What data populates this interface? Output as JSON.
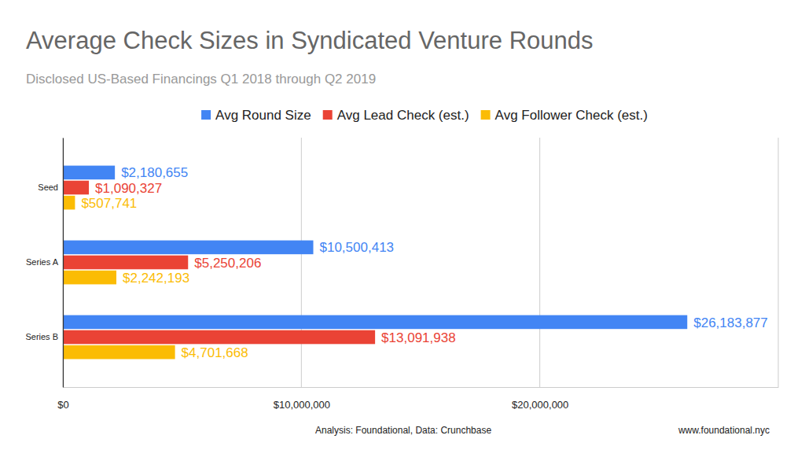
{
  "chart_data": {
    "type": "bar",
    "orientation": "horizontal",
    "title": "Average Check Sizes in Syndicated Venture Rounds",
    "subtitle": "Disclosed US-Based Financings Q1 2018 through Q2 2019",
    "annotations": [
      "Analysis: Foundational, Data: Crunchbase",
      "www.foundational.nyc"
    ],
    "categories": [
      "Seed",
      "Series A",
      "Series B"
    ],
    "series": [
      {
        "name": "Avg Round Size",
        "color": "#4285f4",
        "values": [
          2180655,
          10500413,
          26183877
        ],
        "value_labels": [
          "$2,180,655",
          "$10,500,413",
          "$26,183,877"
        ]
      },
      {
        "name": "Avg Lead Check (est.)",
        "color": "#ea4335",
        "values": [
          1090327,
          5250206,
          13091938
        ],
        "value_labels": [
          "$1,090,327",
          "$5,250,206",
          "$13,091,938"
        ]
      },
      {
        "name": "Avg Follower Check (est.)",
        "color": "#fbbc04",
        "values": [
          507741,
          2242193,
          4701668
        ],
        "value_labels": [
          "$507,741",
          "$2,242,193",
          "$4,701,668"
        ]
      }
    ],
    "xlim": [
      0,
      30000000
    ],
    "xticks": [
      {
        "value": 0,
        "label": "$0"
      },
      {
        "value": 10000000,
        "label": "$10,000,000"
      },
      {
        "value": 20000000,
        "label": "$20,000,000"
      }
    ],
    "grid": true,
    "data_labels": true,
    "legend": "top"
  }
}
